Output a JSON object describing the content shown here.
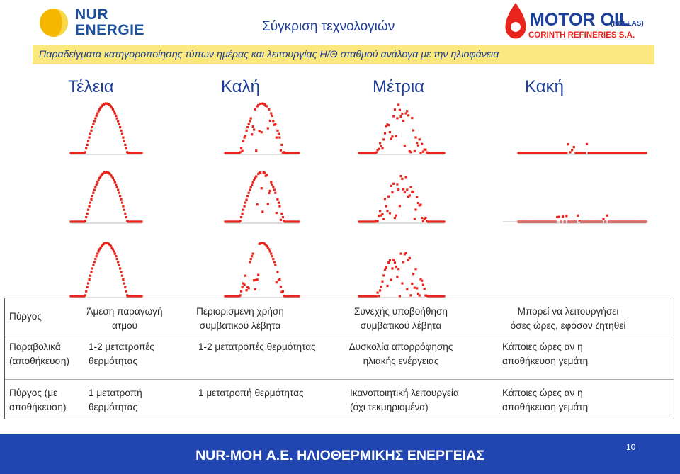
{
  "header": {
    "logo_line1": "NUR",
    "logo_line2": "ENERGIE",
    "title": "Σύγκριση τεχνολογιών",
    "motoroil_line1": "MOTOR OIL",
    "motoroil_hellas": "(HELLAS)",
    "motoroil_line2": "CORINTH REFINERIES S.A."
  },
  "banner": "Παραδείγματα κατηγοροποίησης τύπων ημέρας και λειτουργίας Η/Θ σταθμού ανάλογα με την ηλιοφάνεια",
  "ratings": [
    "Τέλεια",
    "Καλή",
    "Μέτρια",
    "Κακή"
  ],
  "table": {
    "rows": [
      [
        "Πύργος",
        "Άμεση παραγωγή\nατμού",
        "Περιορισμένη χρήση\nσυμβατικού λέβητα",
        "Συνεχής υποβοήθηση\nσυμβατικού λέβητα",
        "Μπορεί να λειτουργήσει\nόσες ώρες, εφόσον ζητηθεί"
      ],
      [
        "Παραβολικά\n(αποθήκευση)",
        "1-2 μετατροπές\nθερμότητας",
        "1-2 μετατροπές θερμότητας",
        "Δυσκολία απορρόφησης\nηλιακής ενέργειας",
        "Κάποιες ώρες αν η\nαποθήκευση γεμάτη"
      ],
      [
        "Πύργος (με\nαποθήκευση)",
        "1 μετατροπή\nθερμότητας",
        "1 μετατροπή θερμότητας",
        "Ικανοποιητική λειτουργεία\n(όχι   τεκμηριομένα)",
        "Κάποιες ώρες αν η\nαποθήκευση γεμάτη"
      ]
    ]
  },
  "footer": {
    "text": "NUR-MOH Α.Ε. ΗΛΙΟΘΕΡΜΙΚΗΣ ΕΝΕΡΓΕΙΑΣ",
    "page": "10"
  },
  "colors": {
    "title_blue": "#1f3f99",
    "banner_yellow": "#fbe87f",
    "dot_red": "#e8241c",
    "footer_blue": "#2146b2"
  }
}
